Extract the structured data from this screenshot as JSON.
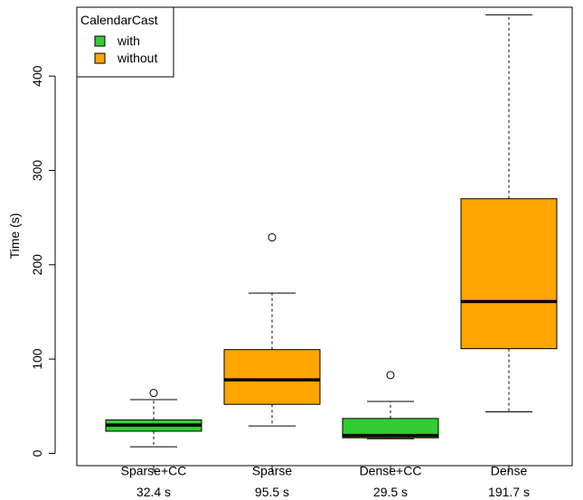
{
  "chart_data": {
    "type": "box",
    "ylabel": "Time (s)",
    "ylim": [
      -13,
      473
    ],
    "y_ticks": [
      0,
      100,
      200,
      300,
      400
    ],
    "legend": {
      "title": "CalendarCast",
      "position": "top-left",
      "entries": [
        {
          "label": "with",
          "color": "#33cc33"
        },
        {
          "label": "without",
          "color": "#ffa500"
        }
      ]
    },
    "categories": [
      {
        "label": "Sparse+CC",
        "sublabel": "32.4 s",
        "group": "with",
        "color": "#33cc33",
        "whisker_low": 7,
        "q1": 23.5,
        "median": 30,
        "q3": 35.5,
        "whisker_high": 57,
        "outliers": [
          64
        ]
      },
      {
        "label": "Sparse",
        "sublabel": "95.5 s",
        "group": "without",
        "color": "#ffa500",
        "whisker_low": 29,
        "q1": 52,
        "median": 78,
        "q3": 110,
        "whisker_high": 170,
        "outliers": [
          229
        ]
      },
      {
        "label": "Dense+CC",
        "sublabel": "29.5 s",
        "group": "with",
        "color": "#33cc33",
        "whisker_low": 15.5,
        "q1": 16.5,
        "median": 19,
        "q3": 37,
        "whisker_high": 55,
        "outliers": [
          83
        ]
      },
      {
        "label": "Dense",
        "sublabel": "191.7 s",
        "group": "without",
        "color": "#ffa500",
        "whisker_low": 44,
        "q1": 111,
        "median": 161,
        "q3": 270,
        "whisker_high": 465,
        "outliers": []
      }
    ]
  }
}
